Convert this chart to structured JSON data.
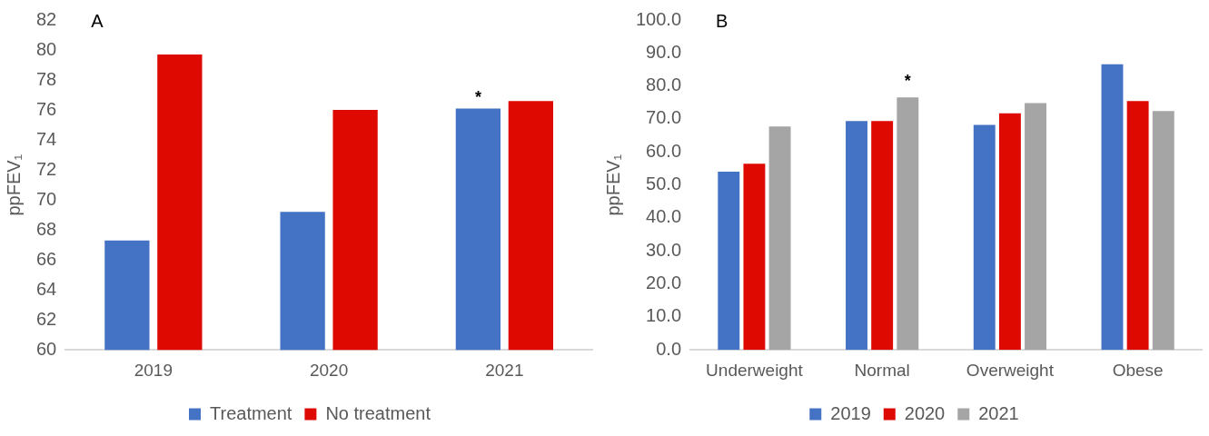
{
  "chart_data": [
    {
      "type": "bar",
      "title": "A",
      "ylabel": "ppFEV₁",
      "categories": [
        "2019",
        "2020",
        "2021"
      ],
      "series": [
        {
          "name": "Treatment",
          "color": "#4472c4",
          "values": [
            67.3,
            69.2,
            76.1
          ]
        },
        {
          "name": "No treatment",
          "color": "#de0a02",
          "values": [
            79.7,
            76.0,
            76.6
          ]
        }
      ],
      "ylim": [
        60,
        82
      ],
      "yticks": [
        60,
        62,
        64,
        66,
        68,
        70,
        72,
        74,
        76,
        78,
        80,
        82
      ],
      "grid": false,
      "legend": "bottom",
      "annotations": [
        {
          "text": "*",
          "x": "2021",
          "y": 76.1
        }
      ]
    },
    {
      "type": "bar",
      "title": "B",
      "ylabel": "ppFEV₁",
      "categories": [
        "Underweight",
        "Normal",
        "Overweight",
        "Obese"
      ],
      "series": [
        {
          "name": "2019",
          "color": "#4472c4",
          "values": [
            54.0,
            69.4,
            68.2,
            86.6
          ]
        },
        {
          "name": "2020",
          "color": "#de0a02",
          "values": [
            56.4,
            69.4,
            71.7,
            75.4
          ]
        },
        {
          "name": "2021",
          "color": "#a5a5a5",
          "values": [
            67.7,
            76.5,
            74.8,
            72.4
          ]
        }
      ],
      "ylim": [
        0,
        100
      ],
      "yticks": [
        {
          "value": 0,
          "label": "0.0"
        },
        {
          "value": 10,
          "label": "10.0"
        },
        {
          "value": 20,
          "label": "20.0"
        },
        {
          "value": 30,
          "label": "30.0"
        },
        {
          "value": 40,
          "label": "40.0"
        },
        {
          "value": 50,
          "label": "50.0"
        },
        {
          "value": 60,
          "label": "60.0"
        },
        {
          "value": 70,
          "label": "70.0"
        },
        {
          "value": 80,
          "label": "80.0"
        },
        {
          "value": 90,
          "label": "90.0"
        },
        {
          "value": 100,
          "label": "100.0"
        }
      ],
      "grid": false,
      "legend": "bottom",
      "annotations": [
        "*"
      ]
    }
  ]
}
